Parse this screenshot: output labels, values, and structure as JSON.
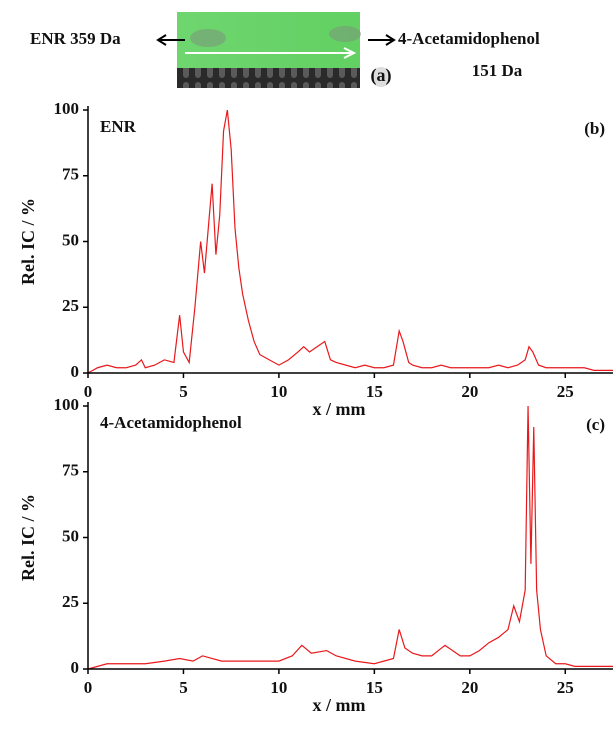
{
  "photo": {
    "left_label": "ENR 359 Da",
    "right_label": "4-Acetamidophenol",
    "right_sublabel": "151 Da",
    "panel_label": "(a)"
  },
  "chart_data": [
    {
      "type": "line",
      "annotation": "ENR",
      "panel_label": "(b)",
      "x_label": "x / mm",
      "y_label": "Rel. IC / %",
      "x": [
        0,
        0.5,
        1,
        1.5,
        2,
        2.5,
        2.8,
        3,
        3.5,
        4,
        4.5,
        4.8,
        5,
        5.3,
        5.6,
        5.9,
        6.1,
        6.3,
        6.5,
        6.7,
        6.9,
        7.1,
        7.3,
        7.5,
        7.7,
        7.9,
        8.1,
        8.4,
        8.7,
        9,
        9.5,
        10,
        10.5,
        11,
        11.3,
        11.6,
        12,
        12.4,
        12.7,
        13,
        13.5,
        14,
        14.5,
        15,
        15.5,
        16,
        16.3,
        16.5,
        16.8,
        17,
        17.5,
        18,
        18.5,
        19,
        19.5,
        20,
        20.5,
        21,
        21.5,
        22,
        22.5,
        22.9,
        23.1,
        23.3,
        23.6,
        24,
        24.5,
        25,
        25.5,
        26,
        26.5,
        27,
        27.5
      ],
      "series": [
        {
          "color": "#e8191c",
          "values": [
            0,
            2,
            3,
            2,
            2,
            3,
            5,
            2,
            3,
            5,
            4,
            22,
            8,
            4,
            25,
            50,
            38,
            55,
            72,
            45,
            60,
            92,
            100,
            85,
            55,
            40,
            30,
            20,
            12,
            7,
            5,
            3,
            5,
            8,
            10,
            8,
            10,
            12,
            5,
            4,
            3,
            2,
            3,
            2,
            2,
            3,
            16,
            12,
            4,
            3,
            2,
            2,
            3,
            2,
            2,
            2,
            2,
            2,
            3,
            2,
            3,
            5,
            10,
            8,
            3,
            2,
            2,
            2,
            2,
            2,
            1,
            1,
            1
          ]
        }
      ],
      "xlim": [
        0,
        27.5
      ],
      "ylim": [
        0,
        100
      ],
      "xticks": [
        0,
        5,
        10,
        15,
        20,
        25
      ],
      "yticks": [
        0,
        25,
        50,
        75,
        100
      ]
    },
    {
      "type": "line",
      "annotation": "4-Acetamidophenol",
      "panel_label": "(c)",
      "x_label": "x / mm",
      "y_label": "Rel. IC / %",
      "x": [
        0,
        1,
        2,
        3,
        4,
        4.8,
        5.5,
        6,
        7,
        8,
        9,
        10,
        10.7,
        11.2,
        11.7,
        12.5,
        13,
        14,
        15,
        15.5,
        16,
        16.3,
        16.6,
        17,
        17.5,
        18,
        18.7,
        19.5,
        20,
        20.5,
        21,
        21.5,
        22,
        22.3,
        22.6,
        22.9,
        23.05,
        23.2,
        23.35,
        23.5,
        23.7,
        24,
        24.5,
        25,
        25.5,
        26,
        27,
        27.5
      ],
      "series": [
        {
          "color": "#e8191c",
          "values": [
            0,
            2,
            2,
            2,
            3,
            4,
            3,
            5,
            3,
            3,
            3,
            3,
            5,
            9,
            6,
            7,
            5,
            3,
            2,
            3,
            4,
            15,
            8,
            6,
            5,
            5,
            9,
            5,
            5,
            7,
            10,
            12,
            15,
            24,
            18,
            30,
            100,
            40,
            92,
            30,
            15,
            5,
            2,
            2,
            1,
            1,
            1,
            1
          ]
        }
      ],
      "xlim": [
        0,
        27.5
      ],
      "ylim": [
        0,
        100
      ],
      "xticks": [
        0,
        5,
        10,
        15,
        20,
        25
      ],
      "yticks": [
        0,
        25,
        50,
        75,
        100
      ]
    }
  ]
}
